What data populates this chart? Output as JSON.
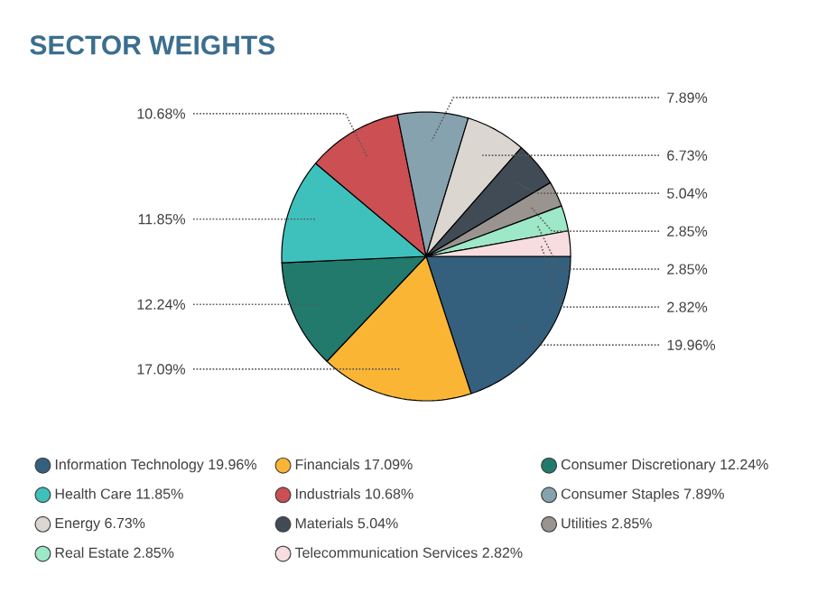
{
  "chart_data": {
    "type": "pie",
    "title": "SECTOR WEIGHTS",
    "categories": [
      "Information Technology",
      "Financials",
      "Consumer Discretionary",
      "Health Care",
      "Industrials",
      "Consumer Staples",
      "Energy",
      "Materials",
      "Utilities",
      "Real Estate",
      "Telecommunication Services"
    ],
    "values": [
      19.96,
      17.09,
      12.24,
      11.85,
      10.68,
      7.89,
      6.73,
      5.04,
      2.85,
      2.85,
      2.82
    ],
    "value_labels": [
      "19.96%",
      "17.09%",
      "12.24%",
      "11.85%",
      "10.68%",
      "7.89%",
      "6.73%",
      "5.04%",
      "2.85%",
      "2.85%",
      "2.82%"
    ],
    "colors": [
      "#34607e",
      "#fbb535",
      "#217a6c",
      "#3ec1bc",
      "#cb4f53",
      "#87a2af",
      "#dcd6d0",
      "#404b55",
      "#9a9490",
      "#9de8c6",
      "#f7dde0"
    ],
    "legend": "bottom"
  }
}
